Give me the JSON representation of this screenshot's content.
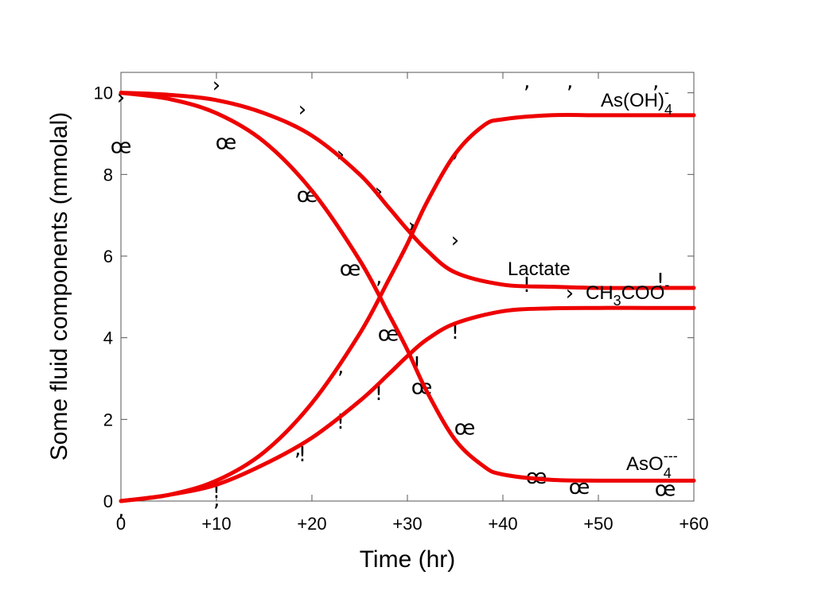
{
  "chart_data": {
    "type": "line",
    "xlabel": "Time (hr)",
    "ylabel": "Some fluid components (mmolal)",
    "xlim": [
      0,
      60
    ],
    "ylim": [
      0,
      10.5
    ],
    "grid": false,
    "x_ticks": [
      0,
      10,
      20,
      30,
      40,
      50,
      60
    ],
    "x_tick_labels": [
      "0",
      "+10",
      "+20",
      "+30",
      "+40",
      "+50",
      "+60"
    ],
    "y_ticks": [
      0,
      2,
      4,
      6,
      8,
      10
    ],
    "y_tick_labels": [
      "0",
      "2",
      "4",
      "6",
      "8",
      "10"
    ],
    "line_color": "#ee0000",
    "series": [
      {
        "name": "Lactate",
        "x": [
          0,
          5,
          10,
          15,
          20,
          25,
          28,
          30,
          32,
          35,
          40,
          45,
          50,
          55,
          60
        ],
        "y": [
          10,
          9.95,
          9.82,
          9.5,
          8.95,
          8.0,
          7.2,
          6.65,
          6.15,
          5.6,
          5.3,
          5.25,
          5.22,
          5.22,
          5.22
        ]
      },
      {
        "name": "CH3COO-",
        "x": [
          0,
          5,
          10,
          15,
          20,
          25,
          28,
          30,
          32,
          35,
          40,
          45,
          50,
          55,
          60
        ],
        "y": [
          0,
          0.15,
          0.4,
          0.9,
          1.55,
          2.45,
          3.1,
          3.55,
          3.95,
          4.35,
          4.65,
          4.72,
          4.73,
          4.73,
          4.73
        ]
      },
      {
        "name": "As(OH)4-",
        "x": [
          0,
          5,
          10,
          15,
          20,
          25,
          28,
          30,
          32,
          35,
          38,
          40,
          45,
          50,
          55,
          60
        ],
        "y": [
          0,
          0.15,
          0.5,
          1.2,
          2.4,
          4.1,
          5.4,
          6.3,
          7.3,
          8.5,
          9.2,
          9.35,
          9.45,
          9.45,
          9.45,
          9.45
        ]
      },
      {
        "name": "AsO4---",
        "x": [
          0,
          5,
          10,
          15,
          20,
          25,
          28,
          30,
          32,
          35,
          38,
          40,
          45,
          50,
          55,
          60
        ],
        "y": [
          10,
          9.85,
          9.5,
          8.8,
          7.6,
          5.9,
          4.6,
          3.7,
          2.7,
          1.5,
          0.85,
          0.65,
          0.52,
          0.5,
          0.5,
          0.5
        ]
      }
    ],
    "markers": [
      {
        "symbol": "›",
        "x": 10,
        "y": 10.2
      },
      {
        "symbol": "›",
        "x": 19,
        "y": 9.6
      },
      {
        "symbol": "›",
        "x": 23,
        "y": 8.5
      },
      {
        "symbol": "›",
        "x": 27,
        "y": 7.6
      },
      {
        "symbol": "›",
        "x": 30.5,
        "y": 6.75
      },
      {
        "symbol": "›",
        "x": 35,
        "y": 6.4
      },
      {
        "symbol": "›",
        "x": 47,
        "y": 5.1
      },
      {
        "symbol": "›",
        "x": 0,
        "y": 9.9
      },
      {
        "symbol": "œ",
        "x": 0,
        "y": 8.7
      },
      {
        "symbol": "œ",
        "x": 11,
        "y": 8.8
      },
      {
        "symbol": "œ",
        "x": 19.5,
        "y": 7.5
      },
      {
        "symbol": "œ",
        "x": 24,
        "y": 5.7
      },
      {
        "symbol": "œ",
        "x": 28,
        "y": 4.1
      },
      {
        "symbol": "œ",
        "x": 31.5,
        "y": 2.8
      },
      {
        "symbol": "œ",
        "x": 36,
        "y": 1.8
      },
      {
        "symbol": "œ",
        "x": 43.5,
        "y": 0.6
      },
      {
        "symbol": "œ",
        "x": 48,
        "y": 0.35
      },
      {
        "symbol": "œ",
        "x": 57,
        "y": 0.3
      },
      {
        "symbol": "!",
        "x": 10,
        "y": 0.25
      },
      {
        "symbol": "!",
        "x": 19,
        "y": 1.15
      },
      {
        "symbol": "!",
        "x": 23,
        "y": 1.95
      },
      {
        "symbol": "!",
        "x": 27,
        "y": 2.65
      },
      {
        "symbol": "!",
        "x": 31,
        "y": 3.35
      },
      {
        "symbol": "!",
        "x": 35,
        "y": 4.15
      },
      {
        "symbol": "!",
        "x": 42.5,
        "y": 5.3
      },
      {
        "symbol": "!",
        "x": 56.5,
        "y": 5.4
      },
      {
        "symbol": "‚",
        "x": 0,
        "y": -0.2
      },
      {
        "symbol": "‚",
        "x": 10,
        "y": 0.05
      },
      {
        "symbol": "‚",
        "x": 18.5,
        "y": 1.3
      },
      {
        "symbol": "‚",
        "x": 23,
        "y": 3.3
      },
      {
        "symbol": "‚",
        "x": 27,
        "y": 5.5
      },
      {
        "symbol": "‚",
        "x": 30.5,
        "y": 6.9
      },
      {
        "symbol": "‚",
        "x": 35,
        "y": 8.6
      },
      {
        "symbol": "‚",
        "x": 42.5,
        "y": 10.3
      },
      {
        "symbol": "‚",
        "x": 47,
        "y": 10.3
      },
      {
        "symbol": "‚",
        "x": 56,
        "y": 10.3
      }
    ]
  }
}
